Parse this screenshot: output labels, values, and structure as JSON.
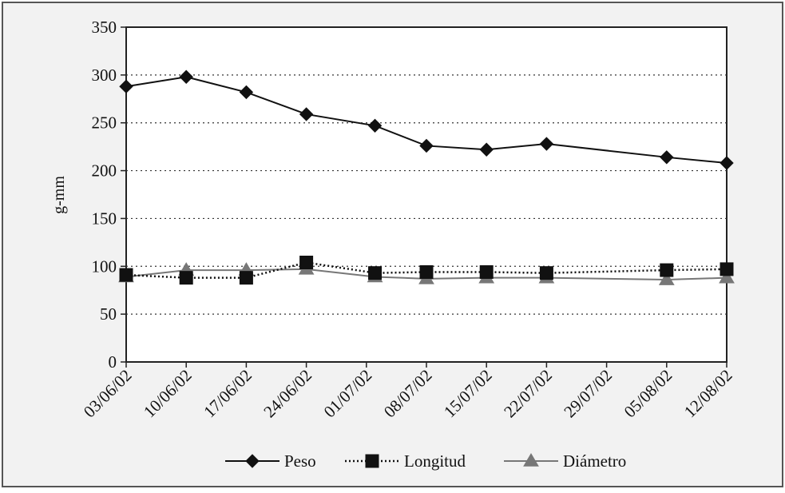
{
  "chart_data": {
    "type": "line",
    "title": "",
    "xlabel": "",
    "ylabel": "g-mm",
    "ylim": [
      0,
      350
    ],
    "yticks": [
      0,
      50,
      100,
      150,
      200,
      250,
      300,
      350
    ],
    "grid": "horizontal dotted",
    "legend_position": "bottom",
    "x_ticks": [
      "03/06/02",
      "10/06/02",
      "17/06/02",
      "24/06/02",
      "01/07/02",
      "08/07/02",
      "15/07/02",
      "22/07/02",
      "29/07/02",
      "05/08/02",
      "12/08/02"
    ],
    "x_domain": [
      "03/06/02",
      "12/08/02"
    ],
    "series": [
      {
        "name": "Peso",
        "marker": "diamond",
        "line": "solid",
        "color": "#111111",
        "points": [
          {
            "x": "03/06/02",
            "y": 288
          },
          {
            "x": "10/06/02",
            "y": 298
          },
          {
            "x": "17/06/02",
            "y": 282
          },
          {
            "x": "24/06/02",
            "y": 259
          },
          {
            "x": "02/07/02",
            "y": 247
          },
          {
            "x": "08/07/02",
            "y": 226
          },
          {
            "x": "15/07/02",
            "y": 222
          },
          {
            "x": "22/07/02",
            "y": 228
          },
          {
            "x": "05/08/02",
            "y": 214
          },
          {
            "x": "12/08/02",
            "y": 208
          }
        ]
      },
      {
        "name": "Longitud",
        "marker": "square",
        "line": "dotted",
        "color": "#111111",
        "points": [
          {
            "x": "03/06/02",
            "y": 91
          },
          {
            "x": "10/06/02",
            "y": 88
          },
          {
            "x": "17/06/02",
            "y": 88
          },
          {
            "x": "24/06/02",
            "y": 104
          },
          {
            "x": "02/07/02",
            "y": 93
          },
          {
            "x": "08/07/02",
            "y": 94
          },
          {
            "x": "15/07/02",
            "y": 94
          },
          {
            "x": "22/07/02",
            "y": 93
          },
          {
            "x": "05/08/02",
            "y": 96
          },
          {
            "x": "12/08/02",
            "y": 97
          }
        ]
      },
      {
        "name": "Diámetro",
        "marker": "triangle",
        "line": "solid",
        "color": "#777777",
        "points": [
          {
            "x": "03/06/02",
            "y": 89
          },
          {
            "x": "10/06/02",
            "y": 96
          },
          {
            "x": "17/06/02",
            "y": 96
          },
          {
            "x": "24/06/02",
            "y": 97
          },
          {
            "x": "02/07/02",
            "y": 89
          },
          {
            "x": "08/07/02",
            "y": 87
          },
          {
            "x": "15/07/02",
            "y": 88
          },
          {
            "x": "22/07/02",
            "y": 88
          },
          {
            "x": "05/08/02",
            "y": 86
          },
          {
            "x": "12/08/02",
            "y": 88
          }
        ]
      }
    ]
  }
}
